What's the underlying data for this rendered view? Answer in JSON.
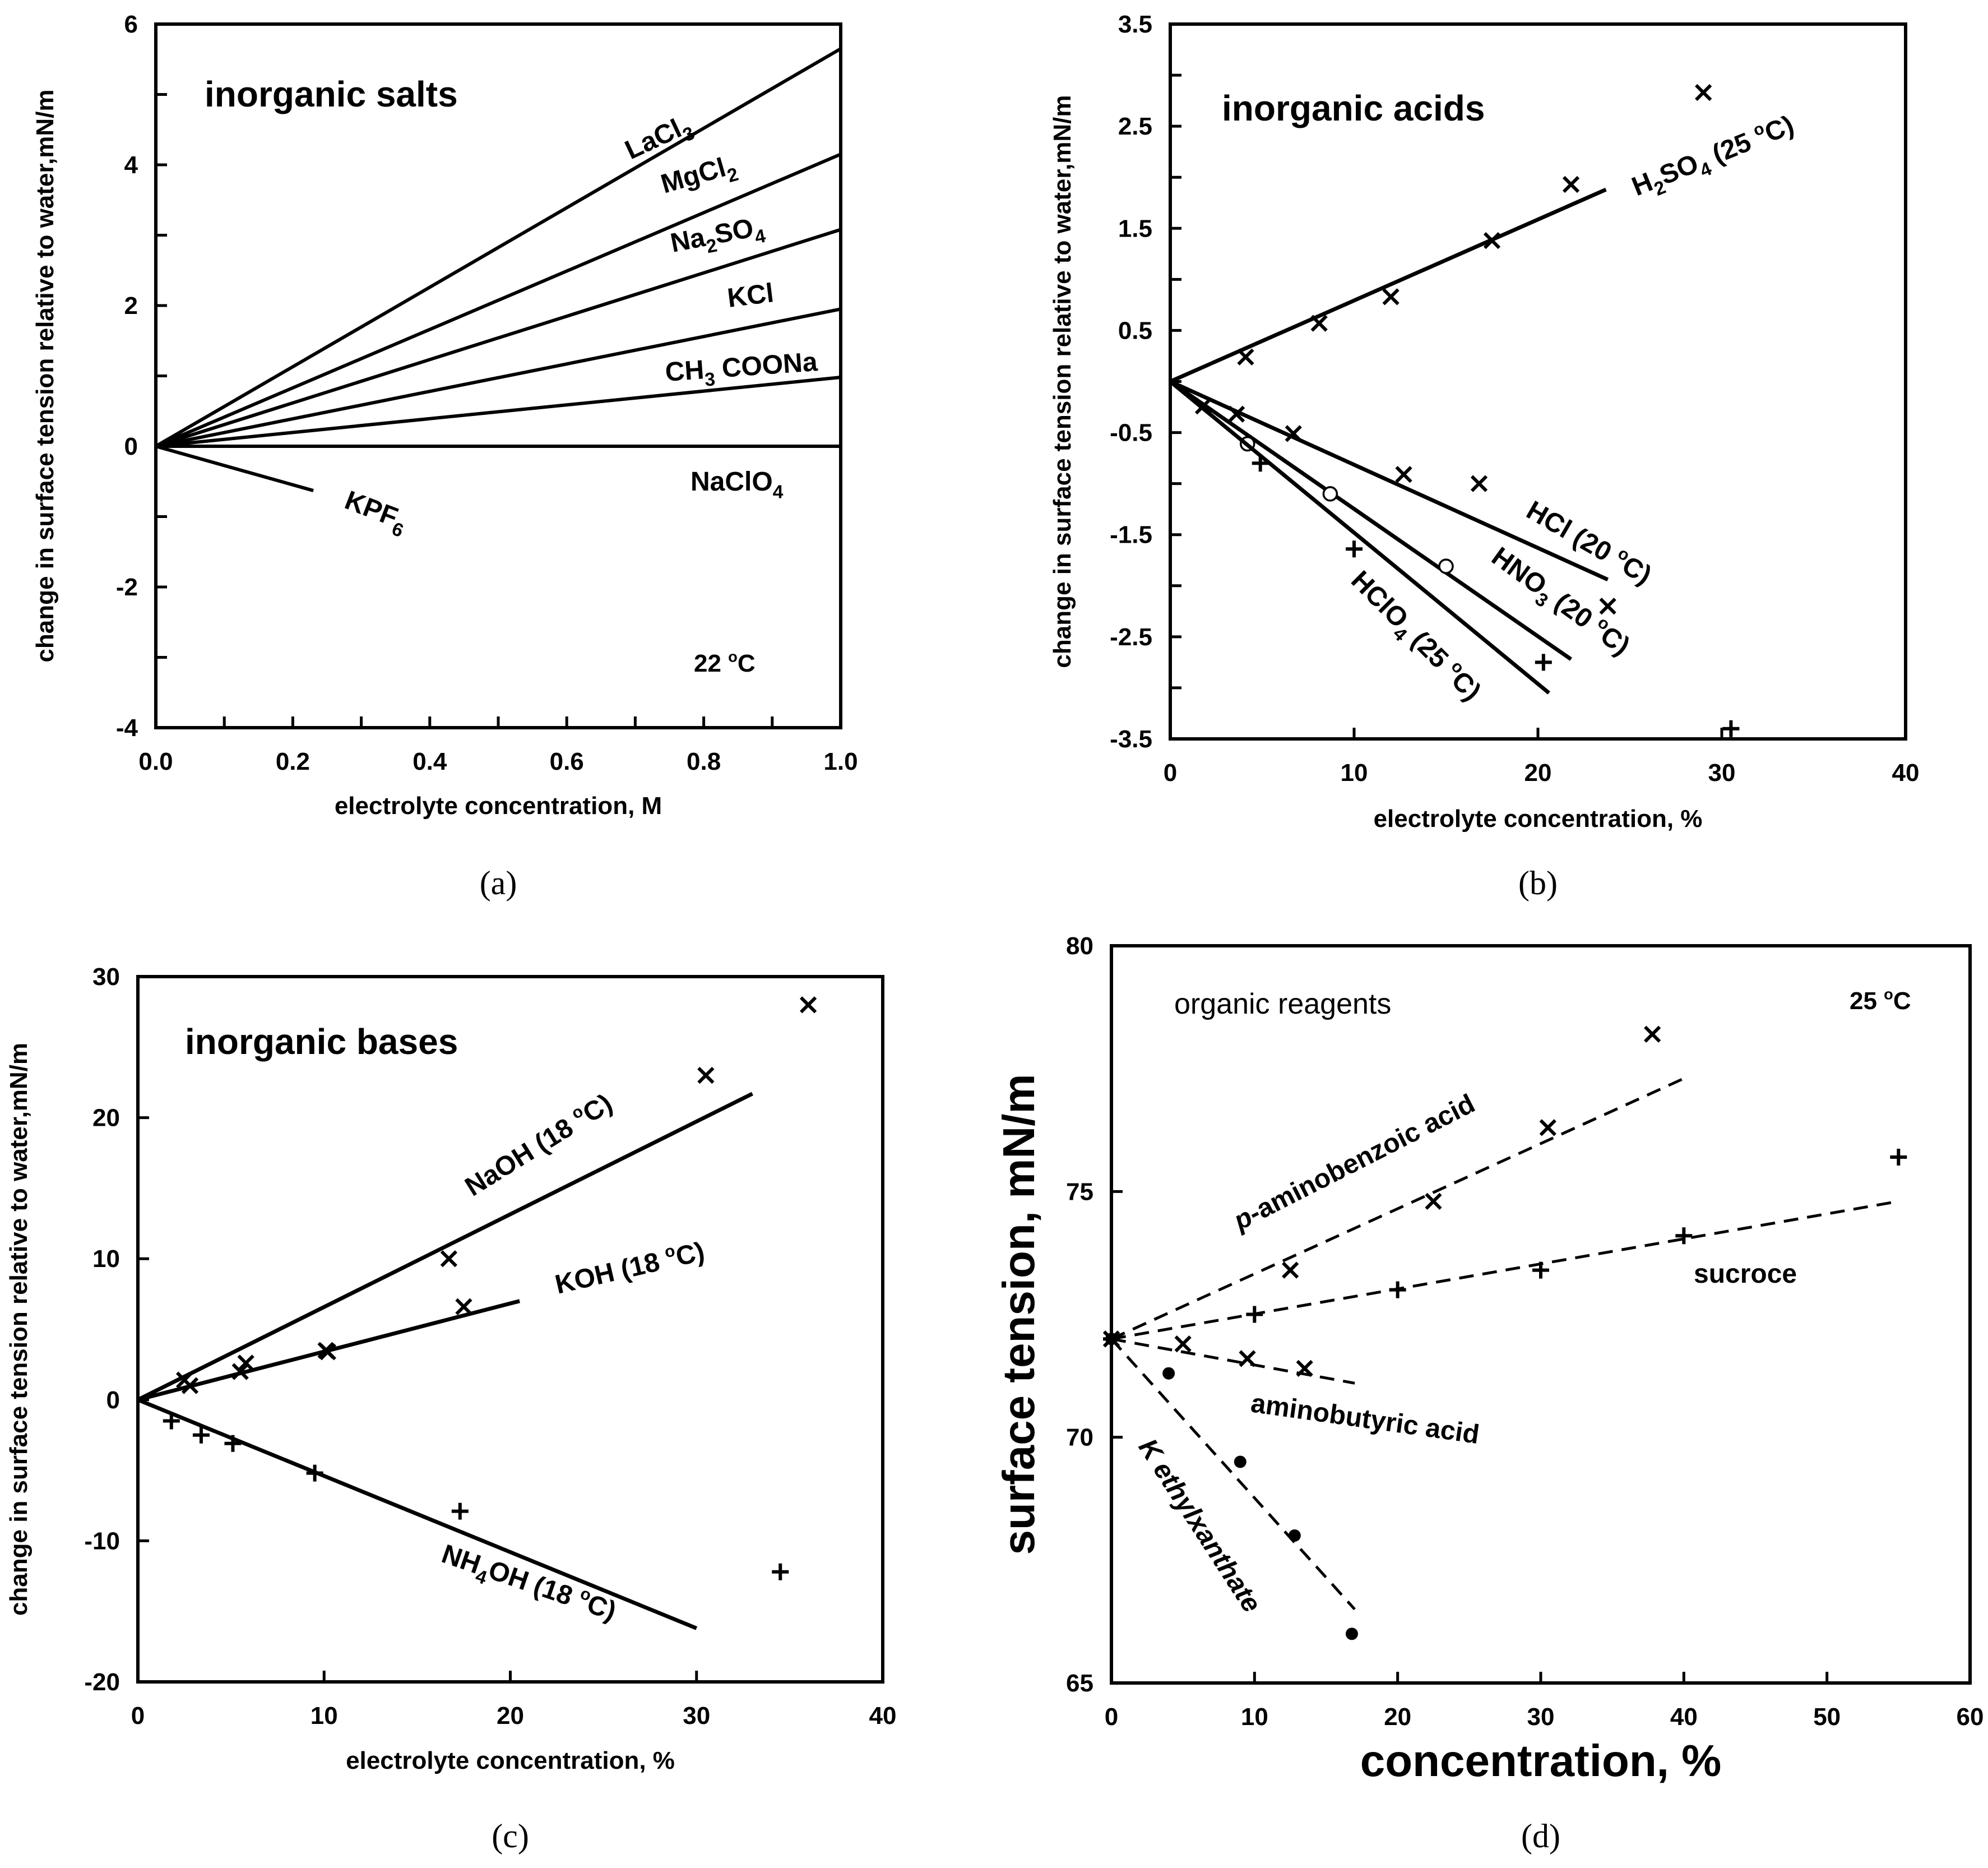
{
  "chart_data": [
    {
      "panel": "a",
      "type": "line",
      "caption": "(a)",
      "title": "inorganic salts",
      "xlabel": "electrolyte  concentration, M",
      "ylabel": "change in surface tension relative to water,mN/m",
      "xlim": [
        0,
        1
      ],
      "ylim": [
        -4,
        6
      ],
      "xticks": [
        "0.0",
        "0.2",
        "0.4",
        "0.6",
        "0.8",
        "1.0"
      ],
      "yticks": [
        "-4",
        "-2",
        "0",
        "2",
        "4",
        "6"
      ],
      "note": "22 °C",
      "series": [
        {
          "name": "LaCl3",
          "label": {
            "main": "LaCl",
            "sub": "3",
            "tail": ""
          },
          "x": [
            0,
            1.0
          ],
          "y": [
            0,
            5.65
          ]
        },
        {
          "name": "MgCl2",
          "label": {
            "main": "MgCl",
            "sub": "2",
            "tail": ""
          },
          "x": [
            0,
            1.0
          ],
          "y": [
            0,
            4.15
          ]
        },
        {
          "name": "Na2SO4",
          "label": {
            "main": "Na",
            "sub": "2",
            "tail": "SO",
            "sub2": "4"
          },
          "x": [
            0,
            1.0
          ],
          "y": [
            0,
            3.08
          ]
        },
        {
          "name": "KCl",
          "label": {
            "main": "KCl",
            "sub": "",
            "tail": ""
          },
          "x": [
            0,
            1.0
          ],
          "y": [
            0,
            1.95
          ]
        },
        {
          "name": "CH3 COONa",
          "label": {
            "main": "CH",
            "sub": "3",
            "tail": " COONa"
          },
          "x": [
            0,
            1.0
          ],
          "y": [
            0,
            0.98
          ]
        },
        {
          "name": "NaClO4",
          "label": {
            "main": "NaClO",
            "sub": "4",
            "tail": ""
          },
          "x": [
            0,
            1.0
          ],
          "y": [
            0,
            0.0
          ]
        },
        {
          "name": "KPF6",
          "label": {
            "main": "KPF",
            "sub": "6",
            "tail": ""
          },
          "x": [
            0,
            0.23
          ],
          "y": [
            0,
            -0.63
          ]
        }
      ]
    },
    {
      "panel": "b",
      "type": "scatter",
      "caption": "(b)",
      "title": "inorganic acids",
      "xlabel": "electrolyte concentration, %",
      "ylabel": "change in surface tension relative to water,mN/m",
      "xlim": [
        0,
        40
      ],
      "ylim": [
        -3.5,
        3.5
      ],
      "xticks": [
        "0",
        "10",
        "20",
        "30",
        "40"
      ],
      "yticks": [
        "3.5",
        "2.5",
        "1.5",
        "0.5",
        "-0.5",
        "-1.5",
        "-2.5",
        "-3.5"
      ],
      "series": [
        {
          "name": "H2SO4 (25 °C)",
          "label": {
            "parts": [
              [
                "H",
                ""
              ],
              [
                "2",
                "sub"
              ],
              [
                "SO",
                ""
              ],
              [
                "4",
                "sub"
              ],
              [
                " (25 ",
                ""
              ],
              [
                "o",
                "sup"
              ],
              [
                "C)",
                ""
              ]
            ]
          },
          "marker": "x",
          "x": [
            4.1,
            8.1,
            12.0,
            17.5,
            21.8,
            29.0
          ],
          "y": [
            0.24,
            0.57,
            0.83,
            1.38,
            1.93,
            2.83
          ],
          "fit": {
            "x": [
              0,
              23.7
            ],
            "y": [
              0,
              1.88
            ]
          }
        },
        {
          "name": "HCl (20 °C)",
          "label": {
            "parts": [
              [
                "HCl (20 ",
                ""
              ],
              [
                "o",
                "sup"
              ],
              [
                "C)",
                ""
              ]
            ]
          },
          "marker": "x",
          "x": [
            1.8,
            3.6,
            6.7,
            12.7,
            16.8,
            23.8
          ],
          "y": [
            -0.24,
            -0.32,
            -0.51,
            -0.91,
            -1.0,
            -2.2
          ],
          "fit": {
            "x": [
              0,
              23.8
            ],
            "y": [
              0,
              -1.94
            ]
          }
        },
        {
          "name": "HNO3 (20 °C)",
          "label": {
            "parts": [
              [
                "HNO",
                ""
              ],
              [
                "3",
                "sub"
              ],
              [
                " (20 ",
                ""
              ],
              [
                "o",
                "sup"
              ],
              [
                "C)",
                ""
              ]
            ]
          },
          "marker": "o",
          "x": [
            4.2,
            8.7,
            15.0
          ],
          "y": [
            -0.61,
            -1.1,
            -1.81
          ],
          "fit": {
            "x": [
              0,
              21.8
            ],
            "y": [
              0,
              -2.72
            ]
          }
        },
        {
          "name": "HClO4 (25 °C)",
          "label": {
            "parts": [
              [
                "HClO",
                ""
              ],
              [
                "4",
                "sub"
              ],
              [
                " (25 ",
                ""
              ],
              [
                "o",
                "sup"
              ],
              [
                "C)",
                ""
              ]
            ]
          },
          "marker": "+",
          "x": [
            4.9,
            10.0,
            20.3,
            30.5
          ],
          "y": [
            -0.8,
            -1.64,
            -2.75,
            -3.4
          ],
          "fit": {
            "x": [
              0,
              20.6
            ],
            "y": [
              0,
              -3.05
            ]
          }
        }
      ]
    },
    {
      "panel": "c",
      "type": "scatter",
      "caption": "(c)",
      "title": "inorganic bases",
      "xlabel": "electrolyte concentration, %",
      "ylabel": "change in surface tension relative to water,mN/m",
      "xlim": [
        0,
        40
      ],
      "ylim": [
        -20,
        30
      ],
      "xticks": [
        "0",
        "10",
        "20",
        "30",
        "40"
      ],
      "yticks": [
        "-20",
        "-10",
        "0",
        "10",
        "20",
        "30"
      ],
      "series": [
        {
          "name": "NaOH (18 °C)",
          "label": {
            "parts": [
              [
                "NaOH (18 ",
                ""
              ],
              [
                "o",
                "sup"
              ],
              [
                "C)",
                ""
              ]
            ]
          },
          "marker": "x",
          "x": [
            2.8,
            5.5,
            10.1,
            16.7,
            30.5,
            36.0
          ],
          "y": [
            1.0,
            2.0,
            3.5,
            10.0,
            23.0,
            28.0
          ],
          "fit": {
            "x": [
              0,
              33.0
            ],
            "y": [
              0,
              21.7
            ]
          }
        },
        {
          "name": "KOH (18 °C)",
          "label": {
            "parts": [
              [
                "KOH (18 ",
                ""
              ],
              [
                "o",
                "sup"
              ],
              [
                "C)",
                ""
              ]
            ]
          },
          "marker": "x",
          "x": [
            2.5,
            5.8,
            10.2,
            17.5
          ],
          "y": [
            1.4,
            2.6,
            3.4,
            6.6
          ],
          "fit": {
            "x": [
              0,
              20.5
            ],
            "y": [
              0,
              7.0
            ]
          }
        },
        {
          "name": "NH4OH (18 °C)",
          "label": {
            "parts": [
              [
                "NH",
                ""
              ],
              [
                "4",
                "sub"
              ],
              [
                "OH (18 ",
                ""
              ],
              [
                "o",
                "sup"
              ],
              [
                "C)",
                ""
              ]
            ]
          },
          "marker": "+",
          "x": [
            1.8,
            3.4,
            5.1,
            9.5,
            17.3,
            34.5
          ],
          "y": [
            -1.5,
            -2.5,
            -3.1,
            -5.2,
            -7.9,
            -12.2
          ],
          "fit": {
            "x": [
              0,
              30.0
            ],
            "y": [
              0,
              -16.2
            ]
          }
        }
      ]
    },
    {
      "panel": "d",
      "type": "scatter",
      "caption": "(d)",
      "title": "organic reagents",
      "xlabel": "concentration, %",
      "ylabel": "surface tension, mN/m",
      "xlim": [
        0,
        60
      ],
      "ylim": [
        65,
        80
      ],
      "xticks": [
        "0",
        "10",
        "20",
        "30",
        "40",
        "50",
        "60"
      ],
      "yticks": [
        "65",
        "70",
        "75",
        "80"
      ],
      "note": "25 °C",
      "series": [
        {
          "name": "p-aminobenzoic acid",
          "label": {
            "parts": [
              [
                "p",
                "it"
              ],
              [
                "-aminobenzoic acid",
                ""
              ]
            ]
          },
          "marker": "x",
          "x": [
            0,
            12.5,
            22.5,
            30.5,
            37.8
          ],
          "y": [
            72.0,
            73.4,
            74.8,
            76.3,
            78.2
          ],
          "fit": {
            "x": [
              0,
              40.0
            ],
            "y": [
              72.0,
              77.3
            ]
          }
        },
        {
          "name": "sucroce",
          "label": {
            "parts": [
              [
                "sucroce",
                ""
              ]
            ]
          },
          "marker": "+",
          "x": [
            0,
            10.0,
            20.0,
            30.0,
            40.0,
            55.0
          ],
          "y": [
            72.0,
            72.5,
            73.0,
            73.4,
            74.1,
            75.7
          ],
          "fit": {
            "x": [
              0,
              55.0
            ],
            "y": [
              72.0,
              74.8
            ]
          }
        },
        {
          "name": "aminobutyric acid",
          "label": {
            "parts": [
              [
                "aminobutyric acid",
                ""
              ]
            ]
          },
          "marker": "x",
          "x": [
            0,
            5.0,
            9.5,
            13.5
          ],
          "y": [
            72.0,
            71.9,
            71.6,
            71.4
          ],
          "fit": {
            "x": [
              0,
              17.0
            ],
            "y": [
              72.0,
              71.1
            ]
          }
        },
        {
          "name": "K ethylxanthate",
          "label": {
            "parts": [
              [
                "K ethylxanthate",
                "it"
              ]
            ]
          },
          "marker": "dot",
          "x": [
            0,
            4.0,
            9.0,
            12.8,
            16.8
          ],
          "y": [
            72.0,
            71.3,
            69.5,
            68.0,
            66.0
          ],
          "fit": {
            "x": [
              0,
              17.0
            ],
            "y": [
              72.0,
              66.5
            ]
          }
        }
      ]
    }
  ]
}
